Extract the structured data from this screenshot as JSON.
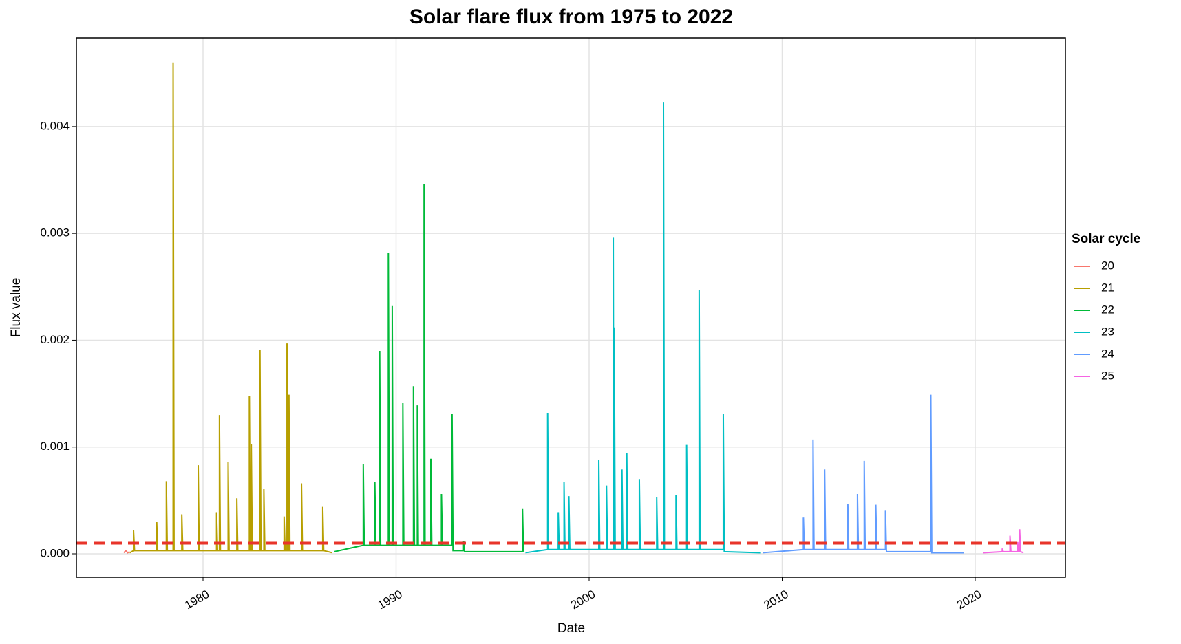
{
  "chart_data": {
    "type": "line",
    "title": "Solar flare flux from 1975 to 2022",
    "x_label": "Date",
    "y_label": "Flux value",
    "legend_title": "Solar cycle",
    "legend_position": "right",
    "grid": true,
    "xlim": [
      1973.44,
      2024.67
    ],
    "xticks": [
      1980,
      1990,
      2000,
      2010,
      2020
    ],
    "ylim": [
      -0.000219,
      0.00483
    ],
    "yticks": [
      {
        "value": 0,
        "label": "0.000"
      },
      {
        "value": 0.001,
        "label": "0.001"
      },
      {
        "value": 0.002,
        "label": "0.002"
      },
      {
        "value": 0.003,
        "label": "0.003"
      },
      {
        "value": 0.004,
        "label": "0.004"
      }
    ],
    "threshold": {
      "value": 0.0001,
      "color": "#e8342a"
    },
    "series": [
      {
        "name": "20",
        "color": "#F8766D",
        "x": [
          1975.9,
          1976.0,
          1976.1,
          1976.2
        ],
        "values": [
          1e-05,
          3e-05,
          1e-05,
          2e-05
        ]
      },
      {
        "name": "21",
        "color": "#B79F00",
        "x": [
          1976.2,
          1976.4,
          1976.4,
          1976.45,
          1977.6,
          1977.6,
          1977.65,
          1978.1,
          1978.1,
          1978.15,
          1978.45,
          1978.45,
          1978.5,
          1978.9,
          1978.9,
          1978.95,
          1979.75,
          1979.75,
          1979.8,
          1980.7,
          1980.7,
          1980.75,
          1980.85,
          1980.85,
          1980.9,
          1981.3,
          1981.3,
          1981.35,
          1981.75,
          1981.75,
          1981.8,
          1982.4,
          1982.4,
          1982.45,
          1982.5,
          1982.5,
          1982.55,
          1982.95,
          1982.95,
          1983.0,
          1983.15,
          1983.15,
          1983.2,
          1984.2,
          1984.2,
          1984.25,
          1984.35,
          1984.35,
          1984.4,
          1984.45,
          1984.45,
          1984.5,
          1985.1,
          1985.1,
          1985.15,
          1986.2,
          1986.2,
          1986.25,
          1986.7
        ],
        "values": [
          1e-05,
          3e-05,
          0.00022,
          3e-05,
          3e-05,
          0.0003,
          3e-05,
          3e-05,
          0.00068,
          3e-05,
          3e-05,
          0.0046,
          3e-05,
          3e-05,
          0.00037,
          3e-05,
          3e-05,
          0.00083,
          3e-05,
          3e-05,
          0.00039,
          3e-05,
          3e-05,
          0.0013,
          3e-05,
          3e-05,
          0.00086,
          3e-05,
          3e-05,
          0.00052,
          3e-05,
          3e-05,
          0.00148,
          3e-05,
          3e-05,
          0.00103,
          3e-05,
          3e-05,
          0.00191,
          3e-05,
          3e-05,
          0.00061,
          3e-05,
          3e-05,
          0.00035,
          3e-05,
          3e-05,
          0.00197,
          3e-05,
          3e-05,
          0.00149,
          3e-05,
          3e-05,
          0.00066,
          3e-05,
          3e-05,
          0.00044,
          3e-05,
          1e-05
        ]
      },
      {
        "name": "22",
        "color": "#00BA38",
        "x": [
          1986.8,
          1988.3,
          1988.3,
          1988.35,
          1988.9,
          1988.9,
          1988.95,
          1989.15,
          1989.15,
          1989.2,
          1989.6,
          1989.6,
          1989.65,
          1989.8,
          1989.8,
          1989.85,
          1990.35,
          1990.35,
          1990.4,
          1990.9,
          1990.9,
          1990.95,
          1991.1,
          1991.1,
          1991.15,
          1991.45,
          1991.45,
          1991.5,
          1991.8,
          1991.8,
          1991.85,
          1992.35,
          1992.35,
          1992.4,
          1992.9,
          1992.9,
          1992.95,
          1993.5,
          1993.5,
          1993.55,
          1996.55,
          1996.55,
          1996.6
        ],
        "values": [
          2e-05,
          8e-05,
          0.00084,
          8e-05,
          8e-05,
          0.00067,
          8e-05,
          8e-05,
          0.0019,
          8e-05,
          8e-05,
          0.00282,
          8e-05,
          8e-05,
          0.00232,
          8e-05,
          8e-05,
          0.00141,
          8e-05,
          8e-05,
          0.00157,
          8e-05,
          8e-05,
          0.00139,
          8e-05,
          8e-05,
          0.00346,
          8e-05,
          8e-05,
          0.00089,
          8e-05,
          8e-05,
          0.00056,
          8e-05,
          8e-05,
          0.00131,
          3e-05,
          3e-05,
          0.00012,
          2e-05,
          2e-05,
          0.00042,
          2e-05
        ]
      },
      {
        "name": "23",
        "color": "#00BFC4",
        "x": [
          1996.7,
          1997.85,
          1997.85,
          1997.9,
          1998.4,
          1998.4,
          1998.45,
          1998.7,
          1998.7,
          1998.75,
          1998.95,
          1998.95,
          1999.0,
          2000.5,
          2000.5,
          2000.55,
          2000.9,
          2000.9,
          2000.95,
          2001.25,
          2001.25,
          2001.28,
          2001.3,
          2001.3,
          2001.35,
          2001.7,
          2001.7,
          2001.75,
          2001.95,
          2001.95,
          2002.0,
          2002.6,
          2002.6,
          2002.65,
          2003.5,
          2003.5,
          2003.55,
          2003.85,
          2003.85,
          2003.9,
          2004.5,
          2004.5,
          2004.55,
          2005.05,
          2005.05,
          2005.1,
          2005.7,
          2005.7,
          2005.75,
          2006.95,
          2006.95,
          2007.0,
          2008.9
        ],
        "values": [
          1e-05,
          4e-05,
          0.00132,
          4e-05,
          4e-05,
          0.00039,
          4e-05,
          4e-05,
          0.00067,
          4e-05,
          4e-05,
          0.00054,
          4e-05,
          4e-05,
          0.00088,
          4e-05,
          4e-05,
          0.00064,
          4e-05,
          4e-05,
          0.00296,
          4e-05,
          4e-05,
          0.00212,
          4e-05,
          4e-05,
          0.00079,
          4e-05,
          4e-05,
          0.00094,
          4e-05,
          4e-05,
          0.0007,
          4e-05,
          4e-05,
          0.00053,
          4e-05,
          4e-05,
          0.00423,
          4e-05,
          4e-05,
          0.00055,
          4e-05,
          4e-05,
          0.00102,
          4e-05,
          4e-05,
          0.00247,
          4e-05,
          4e-05,
          0.00131,
          2e-05,
          1e-05
        ]
      },
      {
        "name": "24",
        "color": "#619CFF",
        "x": [
          2009.0,
          2011.1,
          2011.1,
          2011.15,
          2011.6,
          2011.6,
          2011.65,
          2012.2,
          2012.2,
          2012.25,
          2013.4,
          2013.4,
          2013.45,
          2013.9,
          2013.9,
          2013.95,
          2014.25,
          2014.25,
          2014.3,
          2014.85,
          2014.85,
          2014.9,
          2015.35,
          2015.35,
          2015.4,
          2017.7,
          2017.7,
          2017.75,
          2019.4
        ],
        "values": [
          1e-05,
          4e-05,
          0.00034,
          4e-05,
          4e-05,
          0.00107,
          4e-05,
          4e-05,
          0.00079,
          4e-05,
          4e-05,
          0.00047,
          4e-05,
          4e-05,
          0.00056,
          4e-05,
          4e-05,
          0.00087,
          4e-05,
          4e-05,
          0.00046,
          4e-05,
          4e-05,
          0.00041,
          2e-05,
          2e-05,
          0.00149,
          1e-05,
          1e-05
        ]
      },
      {
        "name": "25",
        "color": "#F564E3",
        "x": [
          2020.4,
          2021.4,
          2021.4,
          2021.45,
          2021.8,
          2021.8,
          2021.85,
          2022.2,
          2022.2,
          2022.25,
          2022.3,
          2022.3,
          2022.35,
          2022.5
        ],
        "values": [
          1e-05,
          2e-05,
          5e-05,
          2e-05,
          2e-05,
          0.00017,
          2e-05,
          2e-05,
          0.00011,
          2e-05,
          2e-05,
          0.00023,
          2e-05,
          1e-05
        ]
      }
    ]
  }
}
